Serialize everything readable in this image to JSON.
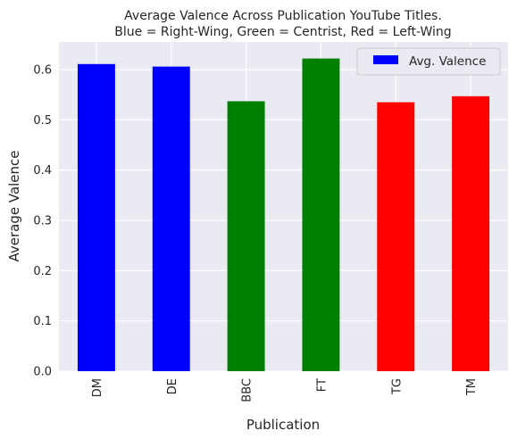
{
  "chart_data": {
    "type": "bar",
    "title": "Average Valence Across Publication YouTube Titles.",
    "subtitle": "Blue = Right-Wing, Green = Centrist, Red = Left-Wing",
    "xlabel": "Publication",
    "ylabel": "Average Valence",
    "categories": [
      "DM",
      "DE",
      "BBC",
      "FT",
      "TG",
      "TM"
    ],
    "series": [
      {
        "name": "Avg. Valence",
        "values": [
          0.611,
          0.606,
          0.537,
          0.622,
          0.535,
          0.547
        ],
        "colors": [
          "#0000ff",
          "#0000ff",
          "#008000",
          "#008000",
          "#ff0000",
          "#ff0000"
        ]
      }
    ],
    "legend_color": "#0000ff",
    "ylim": [
      0,
      0.655
    ],
    "yticks": [
      0.0,
      0.1,
      0.2,
      0.3,
      0.4,
      0.5,
      0.6
    ],
    "ytick_labels": [
      "0.0",
      "0.1",
      "0.2",
      "0.3",
      "0.4",
      "0.5",
      "0.6"
    ],
    "grid": true,
    "legend_position": "top-right",
    "background": "#eaeaf2"
  }
}
